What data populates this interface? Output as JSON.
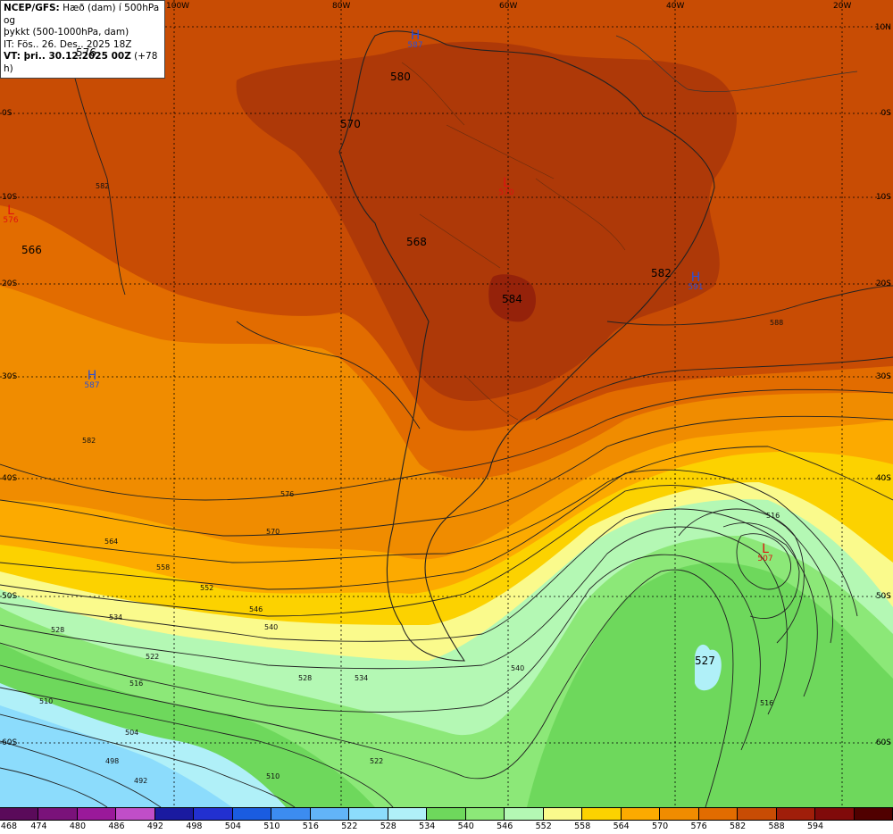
{
  "info": {
    "line1_bold": "NCEP/GFS:",
    "line1_rest": " Hæð (dam) í 500hPa og",
    "line2": "þykkt (500-1000hPa, dam)",
    "line3": "IT: Fös.. 26. Des.. 2025 18Z",
    "line4_bold": "VT: þri.. 30.12.2025 00Z",
    "line4_rest": " (+78 h)"
  },
  "longitudes": [
    "100W",
    "80W",
    "60W",
    "40W",
    "20W"
  ],
  "latitudes_left": [
    "0S",
    "10S",
    "20S",
    "30S",
    "40S",
    "50S",
    "60S"
  ],
  "latitudes_right": [
    "10N",
    "0S",
    "10S",
    "20S",
    "30S",
    "40S",
    "50S",
    "60S"
  ],
  "centers": [
    {
      "type": "H",
      "letter": "H",
      "value": "587"
    },
    {
      "type": "L",
      "letter": "L",
      "value": "576"
    },
    {
      "type": "H",
      "letter": "H",
      "value": "587"
    },
    {
      "type": "L",
      "letter": "L",
      "value": "570"
    },
    {
      "type": "H",
      "letter": "H",
      "value": "591"
    },
    {
      "type": "L",
      "letter": "L",
      "value": "507"
    }
  ],
  "height_labels": [
    "576",
    "580",
    "570",
    "566",
    "568",
    "584",
    "582",
    "527"
  ],
  "contour_labels": [
    "582",
    "588",
    "582",
    "576",
    "570",
    "564",
    "558",
    "552",
    "546",
    "540",
    "534",
    "528",
    "522",
    "516",
    "510",
    "504",
    "498",
    "492",
    "540",
    "516",
    "534",
    "528",
    "522",
    "516",
    "510"
  ],
  "colorbar": {
    "colors": [
      "#5a0a5a",
      "#7a127a",
      "#9a199a",
      "#c04ec8",
      "#1a1aa0",
      "#2230d0",
      "#1a5ce0",
      "#3c8cf0",
      "#62b4f8",
      "#8cdcfc",
      "#b0f0f8",
      "#6ed85c",
      "#8ce878",
      "#b4f8b4",
      "#fafa8c",
      "#fcd200",
      "#fcaa00",
      "#f08c00",
      "#e26c00",
      "#c84c04",
      "#a01e0a",
      "#800a0a",
      "#500000"
    ],
    "ticks": [
      "468",
      "474",
      "480",
      "486",
      "492",
      "498",
      "504",
      "510",
      "516",
      "522",
      "528",
      "534",
      "540",
      "546",
      "552",
      "558",
      "564",
      "570",
      "576",
      "582",
      "588",
      "594"
    ]
  }
}
